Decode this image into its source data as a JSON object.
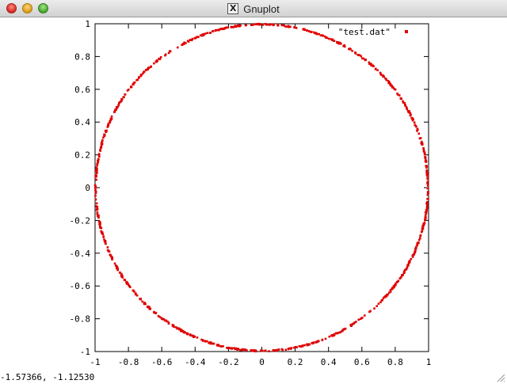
{
  "window": {
    "title": "Gnuplot",
    "icon": "x11-icon",
    "status_text": "-1.57366, -1.12530"
  },
  "chart_data": {
    "type": "scatter",
    "xlim": [
      -1,
      1
    ],
    "ylim": [
      -1,
      1
    ],
    "x_ticks": [
      "-1",
      "-0.8",
      "-0.6",
      "-0.4",
      "-0.2",
      "0",
      "0.2",
      "0.4",
      "0.6",
      "0.8",
      "1"
    ],
    "y_ticks": [
      "1",
      "0.8",
      "0.6",
      "0.4",
      "0.2",
      "0",
      "-0.2",
      "-0.4",
      "-0.6",
      "-0.8",
      "-1"
    ],
    "grid": false,
    "legend_position": "top-right",
    "series": [
      {
        "name": "\"test.dat\"",
        "color": "#e00000",
        "shape": "unit circle",
        "radius": 1,
        "center": [
          0,
          0
        ]
      }
    ]
  }
}
